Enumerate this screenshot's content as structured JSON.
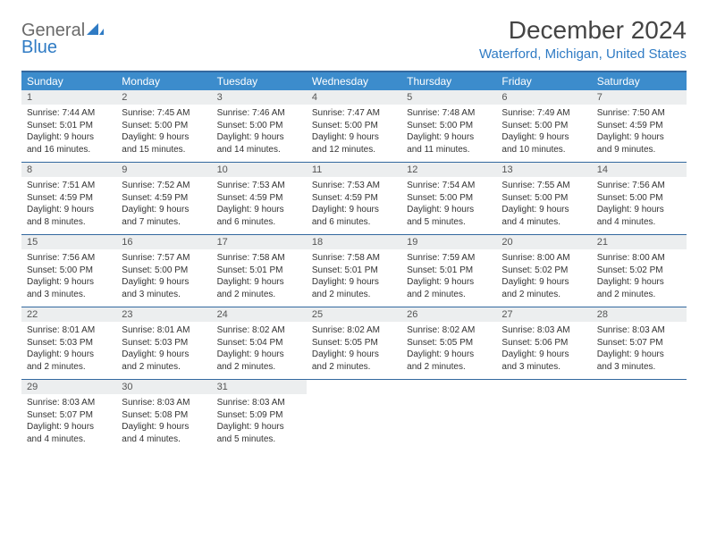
{
  "logo": {
    "line1": "General",
    "line2": "Blue"
  },
  "title": "December 2024",
  "location": "Waterford, Michigan, United States",
  "colors": {
    "header_bg": "#3c8ccc",
    "border": "#33689f",
    "daynum_bg": "#eceeef",
    "accent": "#2f7bc4",
    "text": "#333333"
  },
  "days_of_week": [
    "Sunday",
    "Monday",
    "Tuesday",
    "Wednesday",
    "Thursday",
    "Friday",
    "Saturday"
  ],
  "weeks": [
    [
      {
        "n": "1",
        "sr": "Sunrise: 7:44 AM",
        "ss": "Sunset: 5:01 PM",
        "d1": "Daylight: 9 hours",
        "d2": "and 16 minutes."
      },
      {
        "n": "2",
        "sr": "Sunrise: 7:45 AM",
        "ss": "Sunset: 5:00 PM",
        "d1": "Daylight: 9 hours",
        "d2": "and 15 minutes."
      },
      {
        "n": "3",
        "sr": "Sunrise: 7:46 AM",
        "ss": "Sunset: 5:00 PM",
        "d1": "Daylight: 9 hours",
        "d2": "and 14 minutes."
      },
      {
        "n": "4",
        "sr": "Sunrise: 7:47 AM",
        "ss": "Sunset: 5:00 PM",
        "d1": "Daylight: 9 hours",
        "d2": "and 12 minutes."
      },
      {
        "n": "5",
        "sr": "Sunrise: 7:48 AM",
        "ss": "Sunset: 5:00 PM",
        "d1": "Daylight: 9 hours",
        "d2": "and 11 minutes."
      },
      {
        "n": "6",
        "sr": "Sunrise: 7:49 AM",
        "ss": "Sunset: 5:00 PM",
        "d1": "Daylight: 9 hours",
        "d2": "and 10 minutes."
      },
      {
        "n": "7",
        "sr": "Sunrise: 7:50 AM",
        "ss": "Sunset: 4:59 PM",
        "d1": "Daylight: 9 hours",
        "d2": "and 9 minutes."
      }
    ],
    [
      {
        "n": "8",
        "sr": "Sunrise: 7:51 AM",
        "ss": "Sunset: 4:59 PM",
        "d1": "Daylight: 9 hours",
        "d2": "and 8 minutes."
      },
      {
        "n": "9",
        "sr": "Sunrise: 7:52 AM",
        "ss": "Sunset: 4:59 PM",
        "d1": "Daylight: 9 hours",
        "d2": "and 7 minutes."
      },
      {
        "n": "10",
        "sr": "Sunrise: 7:53 AM",
        "ss": "Sunset: 4:59 PM",
        "d1": "Daylight: 9 hours",
        "d2": "and 6 minutes."
      },
      {
        "n": "11",
        "sr": "Sunrise: 7:53 AM",
        "ss": "Sunset: 4:59 PM",
        "d1": "Daylight: 9 hours",
        "d2": "and 6 minutes."
      },
      {
        "n": "12",
        "sr": "Sunrise: 7:54 AM",
        "ss": "Sunset: 5:00 PM",
        "d1": "Daylight: 9 hours",
        "d2": "and 5 minutes."
      },
      {
        "n": "13",
        "sr": "Sunrise: 7:55 AM",
        "ss": "Sunset: 5:00 PM",
        "d1": "Daylight: 9 hours",
        "d2": "and 4 minutes."
      },
      {
        "n": "14",
        "sr": "Sunrise: 7:56 AM",
        "ss": "Sunset: 5:00 PM",
        "d1": "Daylight: 9 hours",
        "d2": "and 4 minutes."
      }
    ],
    [
      {
        "n": "15",
        "sr": "Sunrise: 7:56 AM",
        "ss": "Sunset: 5:00 PM",
        "d1": "Daylight: 9 hours",
        "d2": "and 3 minutes."
      },
      {
        "n": "16",
        "sr": "Sunrise: 7:57 AM",
        "ss": "Sunset: 5:00 PM",
        "d1": "Daylight: 9 hours",
        "d2": "and 3 minutes."
      },
      {
        "n": "17",
        "sr": "Sunrise: 7:58 AM",
        "ss": "Sunset: 5:01 PM",
        "d1": "Daylight: 9 hours",
        "d2": "and 2 minutes."
      },
      {
        "n": "18",
        "sr": "Sunrise: 7:58 AM",
        "ss": "Sunset: 5:01 PM",
        "d1": "Daylight: 9 hours",
        "d2": "and 2 minutes."
      },
      {
        "n": "19",
        "sr": "Sunrise: 7:59 AM",
        "ss": "Sunset: 5:01 PM",
        "d1": "Daylight: 9 hours",
        "d2": "and 2 minutes."
      },
      {
        "n": "20",
        "sr": "Sunrise: 8:00 AM",
        "ss": "Sunset: 5:02 PM",
        "d1": "Daylight: 9 hours",
        "d2": "and 2 minutes."
      },
      {
        "n": "21",
        "sr": "Sunrise: 8:00 AM",
        "ss": "Sunset: 5:02 PM",
        "d1": "Daylight: 9 hours",
        "d2": "and 2 minutes."
      }
    ],
    [
      {
        "n": "22",
        "sr": "Sunrise: 8:01 AM",
        "ss": "Sunset: 5:03 PM",
        "d1": "Daylight: 9 hours",
        "d2": "and 2 minutes."
      },
      {
        "n": "23",
        "sr": "Sunrise: 8:01 AM",
        "ss": "Sunset: 5:03 PM",
        "d1": "Daylight: 9 hours",
        "d2": "and 2 minutes."
      },
      {
        "n": "24",
        "sr": "Sunrise: 8:02 AM",
        "ss": "Sunset: 5:04 PM",
        "d1": "Daylight: 9 hours",
        "d2": "and 2 minutes."
      },
      {
        "n": "25",
        "sr": "Sunrise: 8:02 AM",
        "ss": "Sunset: 5:05 PM",
        "d1": "Daylight: 9 hours",
        "d2": "and 2 minutes."
      },
      {
        "n": "26",
        "sr": "Sunrise: 8:02 AM",
        "ss": "Sunset: 5:05 PM",
        "d1": "Daylight: 9 hours",
        "d2": "and 2 minutes."
      },
      {
        "n": "27",
        "sr": "Sunrise: 8:03 AM",
        "ss": "Sunset: 5:06 PM",
        "d1": "Daylight: 9 hours",
        "d2": "and 3 minutes."
      },
      {
        "n": "28",
        "sr": "Sunrise: 8:03 AM",
        "ss": "Sunset: 5:07 PM",
        "d1": "Daylight: 9 hours",
        "d2": "and 3 minutes."
      }
    ],
    [
      {
        "n": "29",
        "sr": "Sunrise: 8:03 AM",
        "ss": "Sunset: 5:07 PM",
        "d1": "Daylight: 9 hours",
        "d2": "and 4 minutes."
      },
      {
        "n": "30",
        "sr": "Sunrise: 8:03 AM",
        "ss": "Sunset: 5:08 PM",
        "d1": "Daylight: 9 hours",
        "d2": "and 4 minutes."
      },
      {
        "n": "31",
        "sr": "Sunrise: 8:03 AM",
        "ss": "Sunset: 5:09 PM",
        "d1": "Daylight: 9 hours",
        "d2": "and 5 minutes."
      },
      {
        "empty": true
      },
      {
        "empty": true
      },
      {
        "empty": true
      },
      {
        "empty": true
      }
    ]
  ]
}
